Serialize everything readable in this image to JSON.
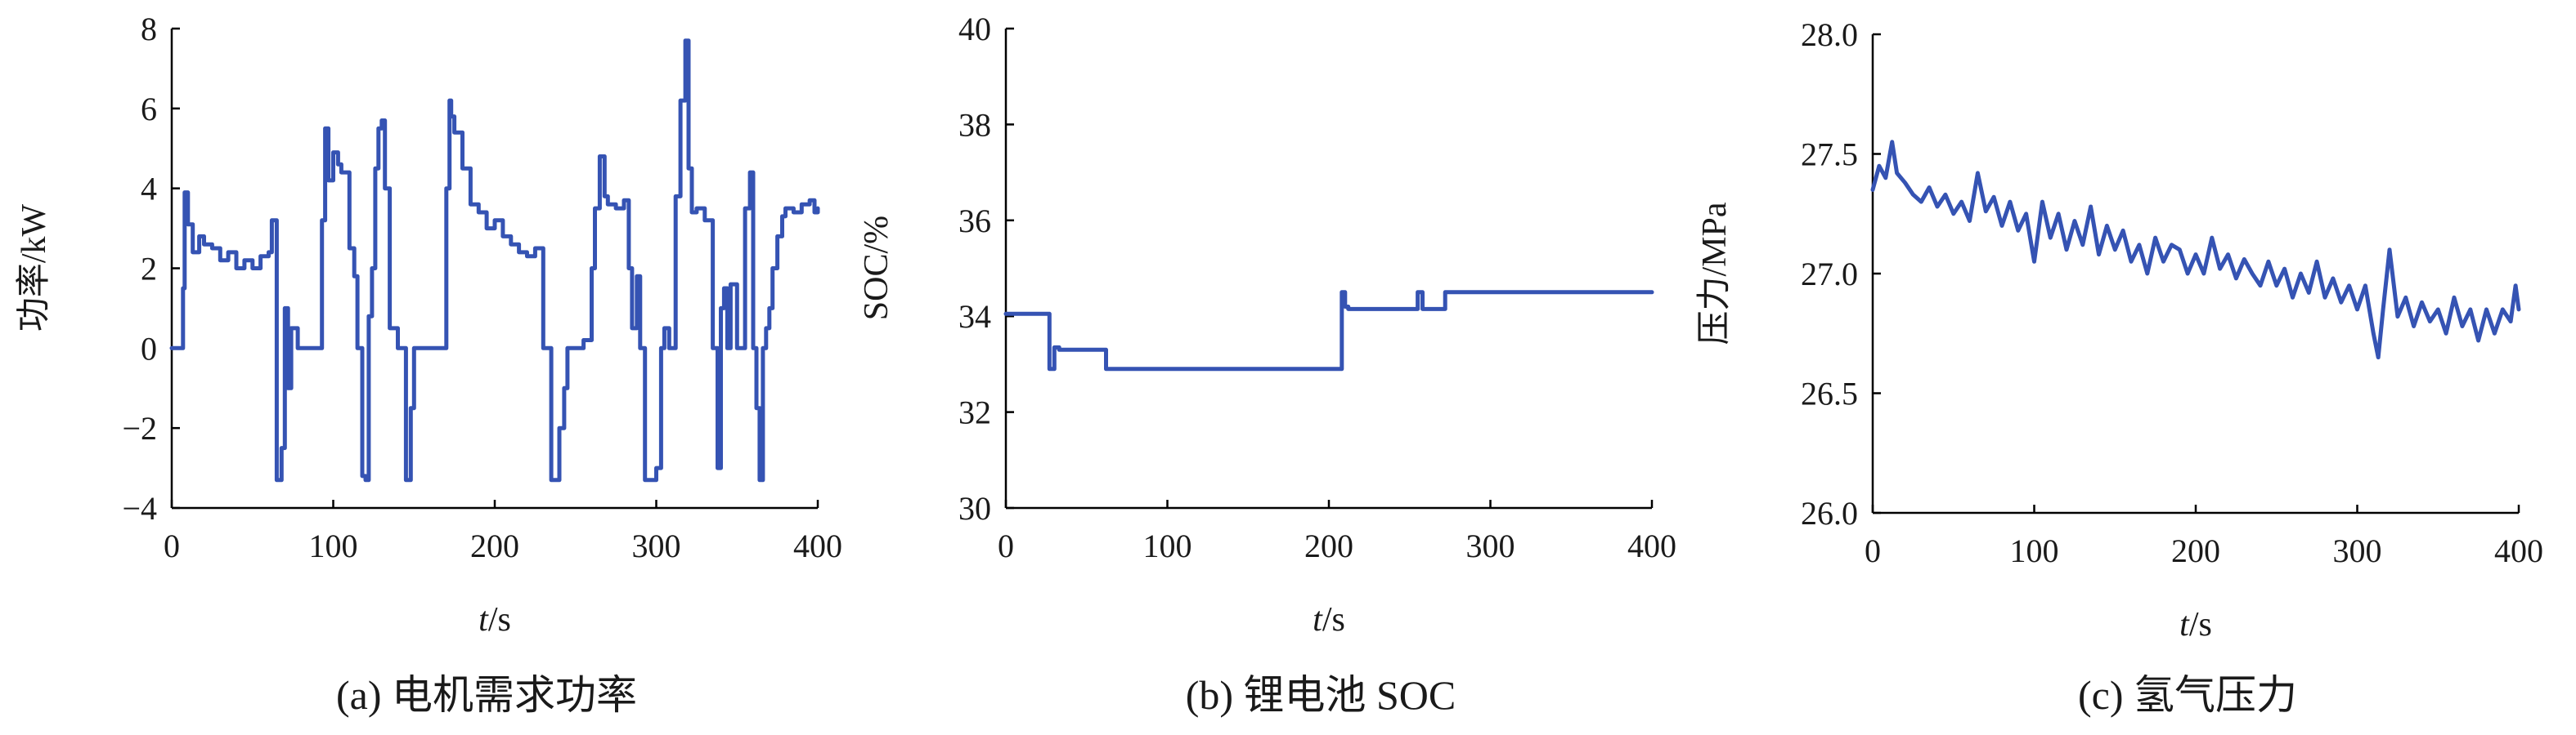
{
  "colors": {
    "series": "#3553b3",
    "axis": "#000000",
    "text": "#1a1a1a"
  },
  "chart_data": [
    {
      "type": "line",
      "caption": "(a) 电机需求功率",
      "xlabel_var": "t",
      "xlabel_unit": "/s",
      "ylabel": "功率/kW",
      "xlim": [
        0,
        400
      ],
      "ylim": [
        -4,
        8
      ],
      "xticks": [
        0,
        100,
        200,
        300,
        400
      ],
      "yticks": [
        -4,
        -2,
        0,
        2,
        4,
        6,
        8
      ],
      "xtick_labels": [
        "0",
        "100",
        "200",
        "300",
        "400"
      ],
      "ytick_labels": [
        "−4",
        "−2",
        "0",
        "2",
        "4",
        "6",
        "8"
      ],
      "step": true,
      "series": [
        {
          "x": [
            0,
            6,
            7,
            8,
            10,
            13,
            17,
            20,
            25,
            30,
            35,
            40,
            45,
            50,
            55,
            60,
            62,
            65,
            66,
            68,
            70,
            72,
            74,
            78,
            85,
            90,
            93,
            95,
            97,
            100,
            103,
            105,
            110,
            113,
            115,
            118,
            120,
            122,
            124,
            126,
            128,
            130,
            132,
            135,
            140,
            145,
            148,
            150,
            152,
            154,
            157,
            160,
            165,
            170,
            172,
            173,
            175,
            180,
            185,
            190,
            195,
            200,
            205,
            210,
            215,
            220,
            225,
            230,
            235,
            237,
            240,
            243,
            245,
            250,
            255,
            260,
            262,
            265,
            268,
            270,
            275,
            280,
            283,
            285,
            288,
            290,
            293,
            296,
            300,
            303,
            305,
            308,
            312,
            315,
            318,
            320,
            322,
            325,
            330,
            335,
            338,
            340,
            342,
            344,
            346,
            350,
            355,
            358,
            360,
            362,
            364,
            366,
            368,
            370,
            372,
            375,
            378,
            380,
            385,
            390,
            395,
            398,
            400
          ],
          "y": [
            0,
            0,
            1.5,
            3.9,
            3.1,
            2.4,
            2.8,
            2.6,
            2.5,
            2.2,
            2.4,
            2.0,
            2.2,
            2.0,
            2.3,
            2.4,
            3.2,
            -3.3,
            -3.3,
            -2.5,
            1.0,
            -1.0,
            0.5,
            0,
            0,
            0,
            3.2,
            5.5,
            4.2,
            4.9,
            4.6,
            4.4,
            2.5,
            1.8,
            0,
            -3.2,
            -3.3,
            0.8,
            2.0,
            4.5,
            5.5,
            5.7,
            4.0,
            0.5,
            0,
            -3.3,
            -1.5,
            0,
            0,
            0,
            0,
            0,
            0,
            4.0,
            6.2,
            5.8,
            5.4,
            4.5,
            3.6,
            3.4,
            3.0,
            3.2,
            2.8,
            2.6,
            2.4,
            2.3,
            2.5,
            0,
            -3.3,
            -3.3,
            -2.0,
            -1.0,
            0,
            0,
            0.2,
            2.0,
            3.5,
            4.8,
            3.8,
            3.6,
            3.5,
            3.7,
            2.0,
            0.5,
            1.8,
            0,
            -3.3,
            -3.3,
            -3.0,
            0,
            0.5,
            0,
            3.8,
            6.2,
            7.7,
            4.5,
            3.4,
            3.5,
            3.2,
            0,
            -3.0,
            1.0,
            1.5,
            0,
            1.6,
            0,
            3.5,
            4.4,
            0,
            -1.5,
            -3.3,
            0,
            0.5,
            1.0,
            2.0,
            2.8,
            3.3,
            3.5,
            3.4,
            3.6,
            3.7,
            3.4,
            3.5
          ]
        }
      ]
    },
    {
      "type": "line",
      "caption": "(b) 锂电池 SOC",
      "xlabel_var": "t",
      "xlabel_unit": "/s",
      "ylabel": "SOC/%",
      "xlim": [
        0,
        400
      ],
      "ylim": [
        30,
        40
      ],
      "xticks": [
        0,
        100,
        200,
        300,
        400
      ],
      "yticks": [
        30,
        32,
        34,
        36,
        38,
        40
      ],
      "xtick_labels": [
        "0",
        "100",
        "200",
        "300",
        "400"
      ],
      "ytick_labels": [
        "30",
        "32",
        "34",
        "36",
        "38",
        "40"
      ],
      "step": true,
      "series": [
        {
          "x": [
            0,
            27,
            30,
            33,
            62,
            208,
            210,
            212,
            255,
            258,
            262,
            272,
            275,
            400
          ],
          "y": [
            34.05,
            32.9,
            33.35,
            33.3,
            32.9,
            34.5,
            34.2,
            34.15,
            34.5,
            34.15,
            34.15,
            34.5,
            34.5,
            34.5
          ]
        }
      ]
    },
    {
      "type": "line",
      "caption": "(c) 氢气压力",
      "xlabel_var": "t",
      "xlabel_unit": "/s",
      "ylabel": "压力/MPa",
      "xlim": [
        0,
        400
      ],
      "ylim": [
        26.0,
        28.0
      ],
      "xticks": [
        0,
        100,
        200,
        300,
        400
      ],
      "yticks": [
        26.0,
        26.5,
        27.0,
        27.5,
        28.0
      ],
      "xtick_labels": [
        "0",
        "100",
        "200",
        "300",
        "400"
      ],
      "ytick_labels": [
        "26.0",
        "26.5",
        "27.0",
        "27.5",
        "28.0"
      ],
      "step": false,
      "series": [
        {
          "x": [
            0,
            4,
            8,
            12,
            15,
            20,
            25,
            30,
            35,
            40,
            45,
            50,
            55,
            60,
            65,
            70,
            75,
            80,
            85,
            90,
            95,
            100,
            105,
            110,
            115,
            120,
            125,
            130,
            135,
            140,
            145,
            150,
            155,
            160,
            165,
            170,
            175,
            180,
            185,
            190,
            195,
            200,
            205,
            210,
            215,
            220,
            225,
            230,
            235,
            240,
            245,
            250,
            255,
            260,
            265,
            270,
            275,
            280,
            285,
            290,
            295,
            300,
            305,
            310,
            313,
            316,
            320,
            325,
            330,
            335,
            340,
            345,
            350,
            355,
            360,
            365,
            370,
            375,
            380,
            385,
            390,
            395,
            398,
            400
          ],
          "y": [
            27.35,
            27.45,
            27.4,
            27.55,
            27.42,
            27.38,
            27.33,
            27.3,
            27.36,
            27.28,
            27.33,
            27.25,
            27.3,
            27.22,
            27.42,
            27.26,
            27.32,
            27.2,
            27.3,
            27.18,
            27.25,
            27.05,
            27.3,
            27.15,
            27.25,
            27.1,
            27.22,
            27.12,
            27.28,
            27.08,
            27.2,
            27.1,
            27.18,
            27.05,
            27.12,
            27.0,
            27.15,
            27.05,
            27.12,
            27.1,
            27.0,
            27.08,
            27.0,
            27.15,
            27.02,
            27.08,
            26.98,
            27.06,
            27.0,
            26.95,
            27.05,
            26.95,
            27.02,
            26.9,
            27.0,
            26.92,
            27.05,
            26.9,
            26.98,
            26.88,
            26.95,
            26.85,
            26.95,
            26.75,
            26.65,
            26.85,
            27.1,
            26.82,
            26.9,
            26.78,
            26.88,
            26.8,
            26.85,
            26.75,
            26.9,
            26.78,
            26.85,
            26.72,
            26.85,
            26.75,
            26.85,
            26.8,
            26.95,
            26.85
          ]
        }
      ]
    }
  ]
}
